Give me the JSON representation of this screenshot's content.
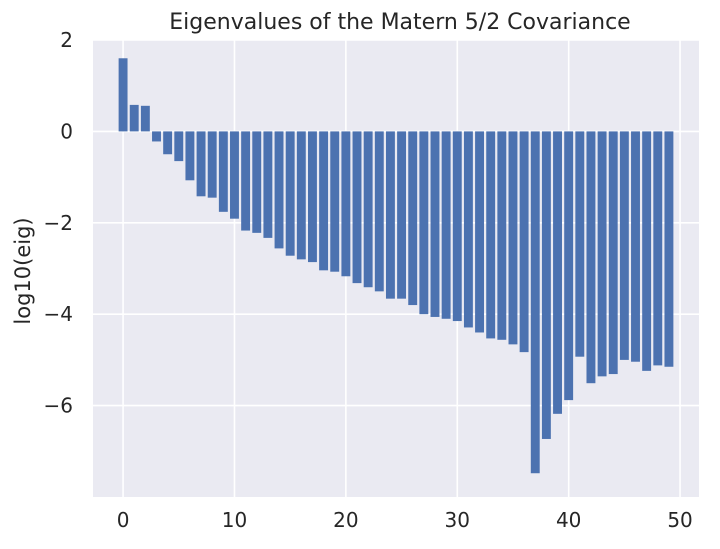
{
  "chart_data": {
    "type": "bar",
    "title": "Eigenvalues of the Matern 5/2 Covariance",
    "xlabel": "",
    "ylabel": "log10(eig)",
    "xlim": [
      -2.7,
      51.7
    ],
    "ylim": [
      -8.0,
      2.0
    ],
    "x_ticks": [
      0,
      10,
      20,
      30,
      40,
      50
    ],
    "x_tick_labels": [
      "0",
      "10",
      "20",
      "30",
      "40",
      "50"
    ],
    "y_ticks": [
      2,
      0,
      -2,
      -4,
      -6
    ],
    "y_tick_labels": [
      "2",
      "0",
      "−2",
      "−4",
      "−6"
    ],
    "grid": true,
    "colors": {
      "bar": "#4c72b0",
      "axes_background": "#eaeaf2",
      "grid": "#ffffff",
      "text": "#262626"
    },
    "x": [
      0,
      1,
      2,
      3,
      4,
      5,
      6,
      7,
      8,
      9,
      10,
      11,
      12,
      13,
      14,
      15,
      16,
      17,
      18,
      19,
      20,
      21,
      22,
      23,
      24,
      25,
      26,
      27,
      28,
      29,
      30,
      31,
      32,
      33,
      34,
      35,
      36,
      37,
      38,
      39,
      40,
      41,
      42,
      43,
      44,
      45,
      46,
      47,
      48,
      49
    ],
    "values": [
      1.6,
      0.58,
      0.56,
      -0.22,
      -0.5,
      -0.65,
      -1.07,
      -1.42,
      -1.45,
      -1.76,
      -1.91,
      -2.17,
      -2.22,
      -2.33,
      -2.56,
      -2.72,
      -2.8,
      -2.86,
      -3.04,
      -3.07,
      -3.17,
      -3.32,
      -3.41,
      -3.5,
      -3.66,
      -3.66,
      -3.8,
      -4.0,
      -4.06,
      -4.1,
      -4.15,
      -4.29,
      -4.4,
      -4.53,
      -4.56,
      -4.66,
      -4.83,
      -7.48,
      -6.73,
      -6.18,
      -5.88,
      -4.93,
      -5.51,
      -5.36,
      -5.31,
      -5.0,
      -5.04,
      -5.24,
      -5.12,
      -5.15
    ]
  }
}
